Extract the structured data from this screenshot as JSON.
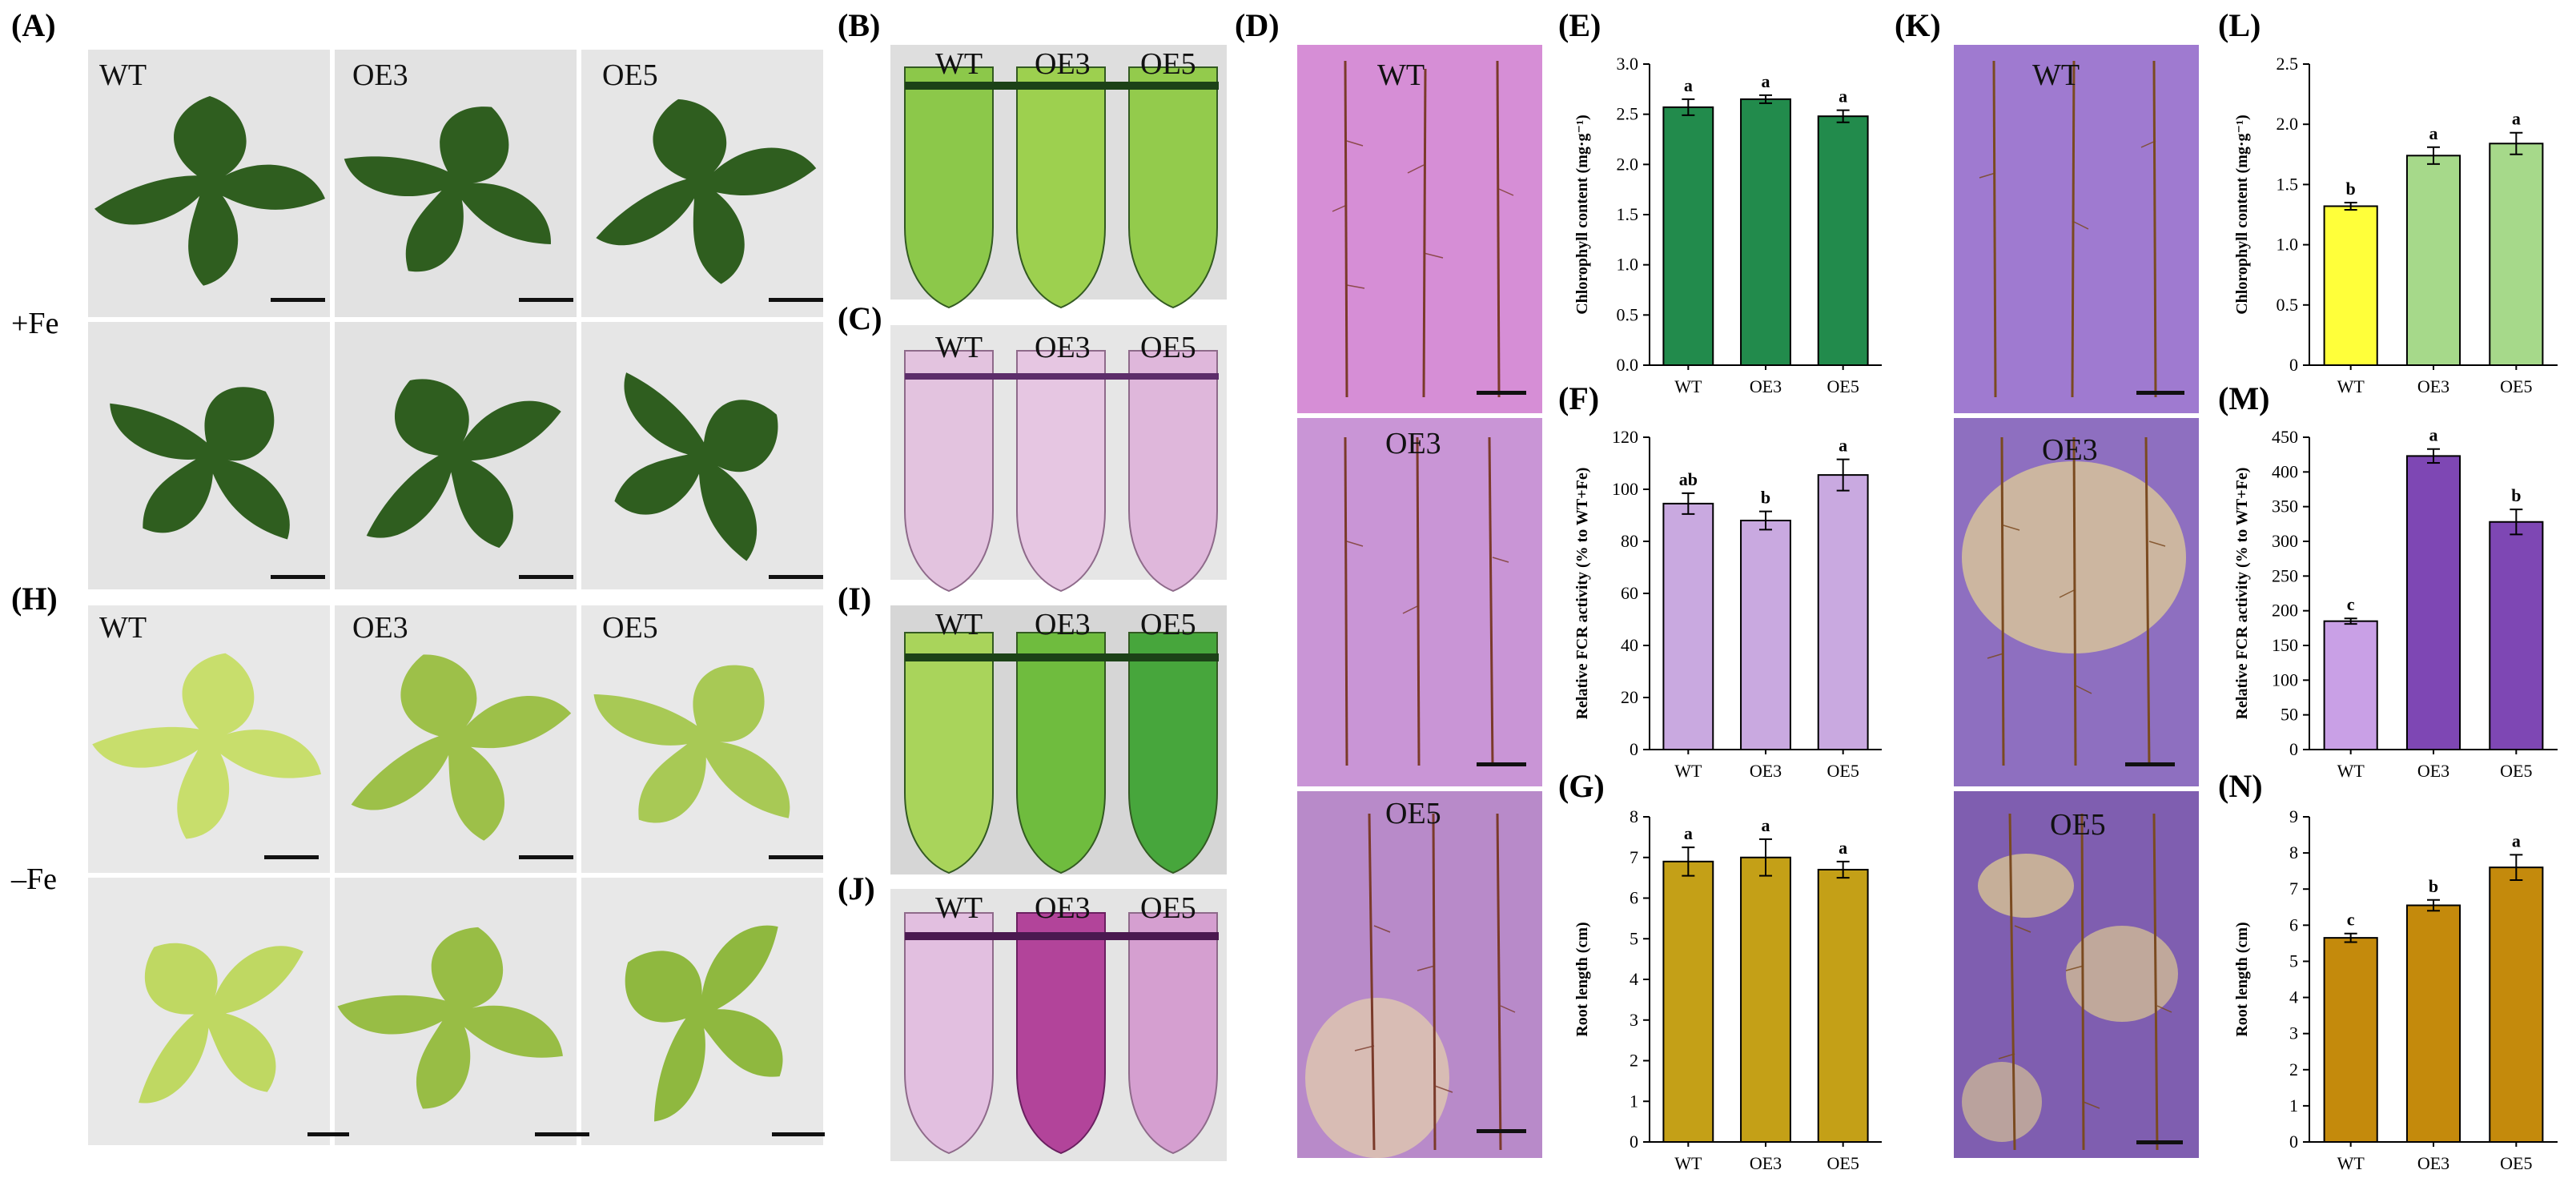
{
  "panel_labels": {
    "A": "(A)",
    "B": "(B)",
    "C": "(C)",
    "D": "(D)",
    "E": "(E)",
    "F": "(F)",
    "G": "(G)",
    "H": "(H)",
    "I": "(I)",
    "J": "(J)",
    "K": "(K)",
    "L": "(L)",
    "M": "(M)",
    "N": "(N)"
  },
  "conditions": {
    "plus_fe": "+Fe",
    "minus_fe": "–Fe"
  },
  "genotypes": [
    "WT",
    "OE3",
    "OE5"
  ],
  "colors": {
    "leaf_dark": "#2f5e1f",
    "leaf_pale": "#b9d35a",
    "tube_green": "#8cc84a",
    "tube_pink": "#e3c3df",
    "tube_magenta": "#b2449a",
    "plate_pink": "#d69ad8",
    "plate_purple": "#8e6fc0",
    "E_bar": "#228b4c",
    "F_bar": "#c9a9e0",
    "G_bar": "#c4a017",
    "L_WT": "#ffff3a",
    "L_OE": "#a6d98a",
    "M_WT": "#c9a0e6",
    "M_OE": "#7e47b4",
    "N_bar": "#c48a0c"
  },
  "chart_data": [
    {
      "id": "E",
      "type": "bar",
      "categories": [
        "WT",
        "OE3",
        "OE5"
      ],
      "values": [
        2.57,
        2.65,
        2.48
      ],
      "errors": [
        0.08,
        0.04,
        0.06
      ],
      "letters": [
        "a",
        "a",
        "a"
      ],
      "ylabel": "Chlorophyll content (mg·g⁻¹)",
      "ylim": [
        0,
        3.0
      ],
      "ticks": [
        "0.0",
        "0.5",
        "1.0",
        "1.5",
        "2.0",
        "2.5",
        "3.0"
      ]
    },
    {
      "id": "F",
      "type": "bar",
      "categories": [
        "WT",
        "OE3",
        "OE5"
      ],
      "values": [
        94.5,
        88,
        105.5
      ],
      "errors": [
        4,
        3.5,
        6
      ],
      "letters": [
        "ab",
        "b",
        "a"
      ],
      "ylabel": "Relative FCR activity (% to WT+Fe)",
      "ylim": [
        0,
        120
      ],
      "ticks": [
        "0",
        "20",
        "40",
        "60",
        "80",
        "100",
        "120"
      ]
    },
    {
      "id": "G",
      "type": "bar",
      "categories": [
        "WT",
        "OE3",
        "OE5"
      ],
      "values": [
        6.9,
        7.0,
        6.7
      ],
      "errors": [
        0.35,
        0.45,
        0.2
      ],
      "letters": [
        "a",
        "a",
        "a"
      ],
      "ylabel": "Root length (cm)",
      "ylim": [
        0,
        8
      ],
      "ticks": [
        "0",
        "1",
        "2",
        "3",
        "4",
        "5",
        "6",
        "7",
        "8"
      ]
    },
    {
      "id": "L",
      "type": "bar",
      "categories": [
        "WT",
        "OE3",
        "OE5"
      ],
      "values": [
        1.32,
        1.74,
        1.84
      ],
      "errors": [
        0.03,
        0.07,
        0.09
      ],
      "letters": [
        "b",
        "a",
        "a"
      ],
      "ylabel": "Chlorophyll content (mg·g⁻¹)",
      "ylim": [
        0,
        2.5
      ],
      "ticks": [
        "0",
        "0.5",
        "1.0",
        "1.5",
        "2.0",
        "2.5"
      ]
    },
    {
      "id": "M",
      "type": "bar",
      "categories": [
        "WT",
        "OE3",
        "OE5"
      ],
      "values": [
        185,
        423,
        328
      ],
      "errors": [
        4,
        10,
        18
      ],
      "letters": [
        "c",
        "a",
        "b"
      ],
      "ylabel": "Relative FCR activity (% to WT+Fe)",
      "ylim": [
        0,
        450
      ],
      "ticks": [
        "0",
        "50",
        "100",
        "150",
        "200",
        "250",
        "300",
        "350",
        "400",
        "450"
      ]
    },
    {
      "id": "N",
      "type": "bar",
      "categories": [
        "WT",
        "OE3",
        "OE5"
      ],
      "values": [
        5.65,
        6.55,
        7.6
      ],
      "errors": [
        0.12,
        0.15,
        0.35
      ],
      "letters": [
        "c",
        "b",
        "a"
      ],
      "ylabel": "Root length (cm)",
      "ylim": [
        0,
        9
      ],
      "ticks": [
        "0",
        "1",
        "2",
        "3",
        "4",
        "5",
        "6",
        "7",
        "8",
        "9"
      ]
    }
  ]
}
